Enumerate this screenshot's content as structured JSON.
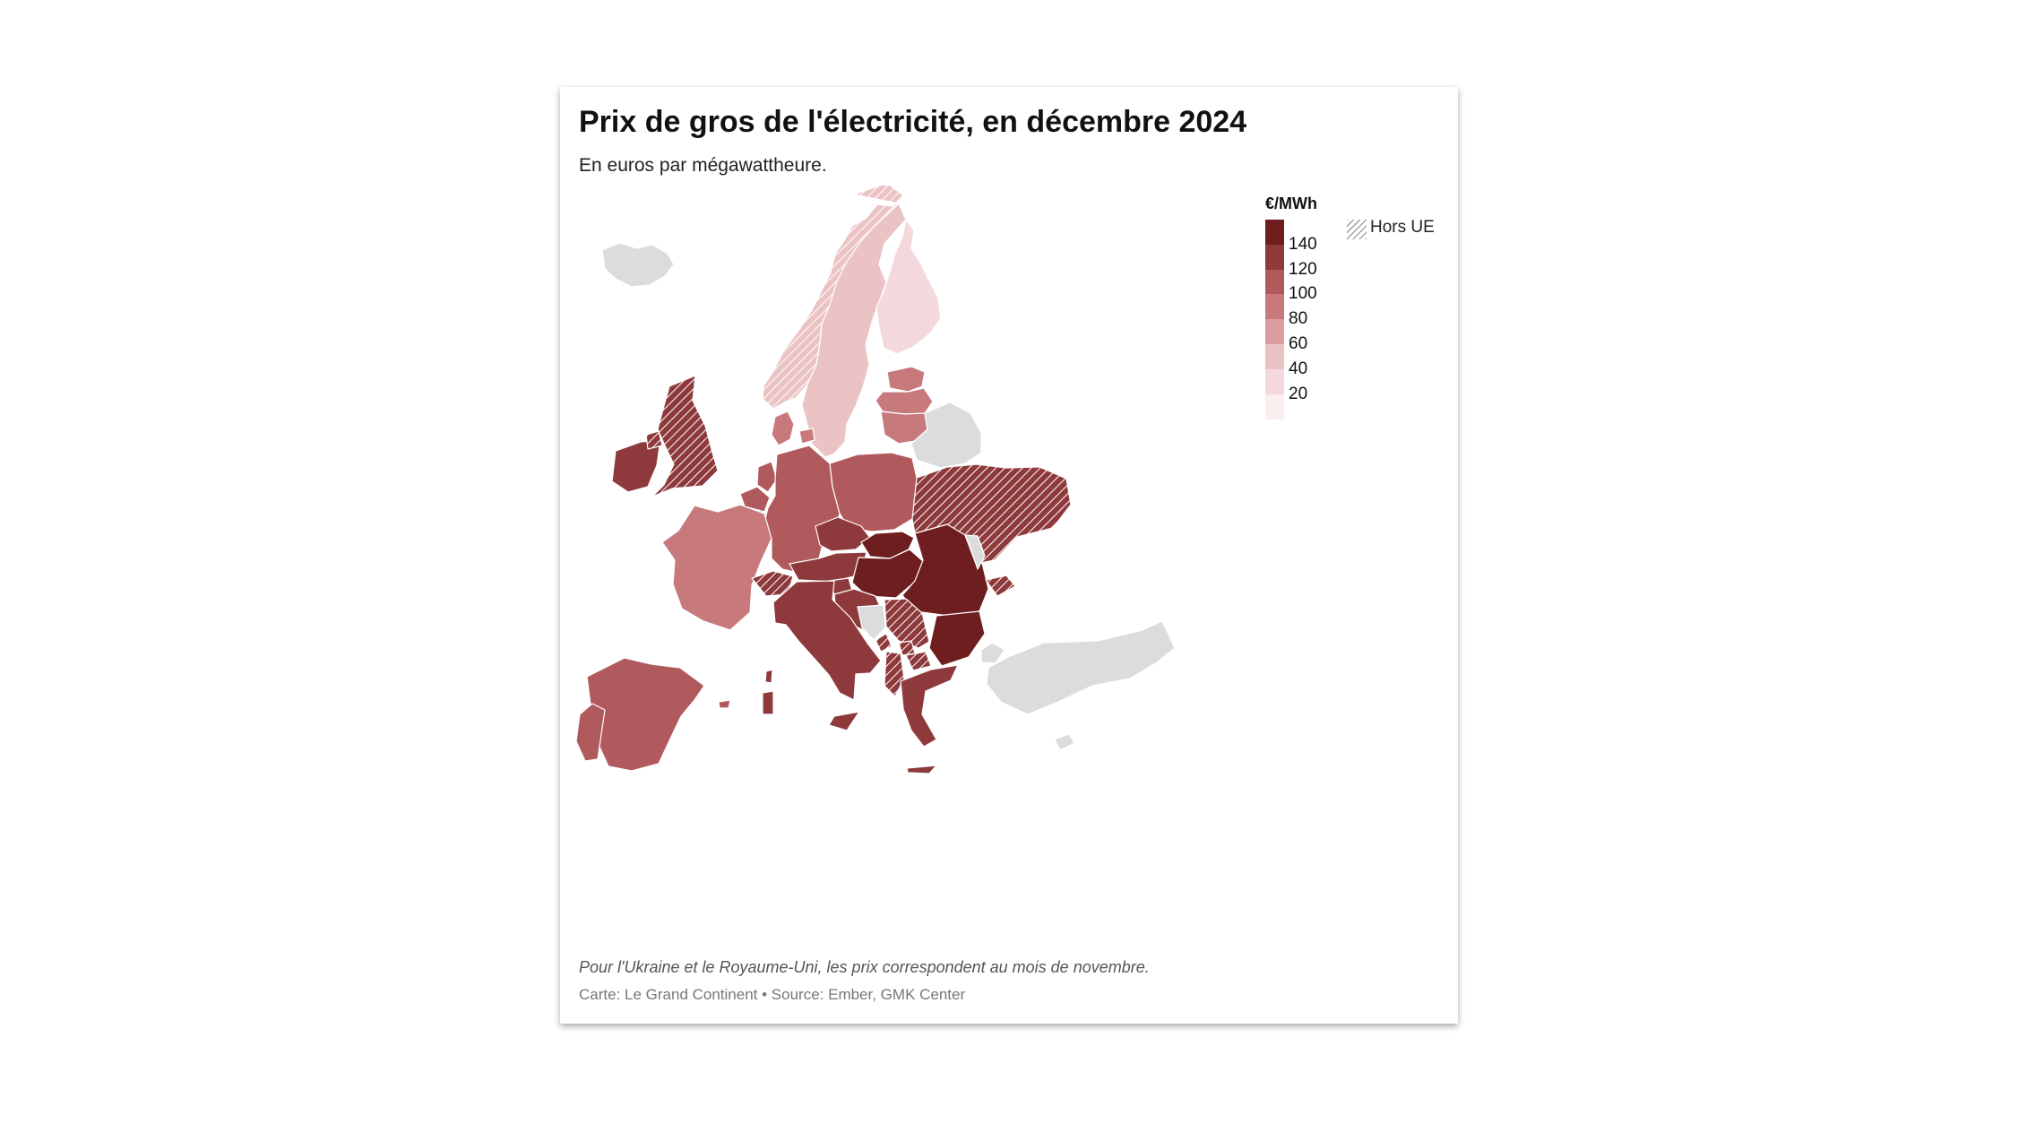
{
  "title": "Prix de gros de l'électricité, en décembre 2024",
  "subtitle": "En euros par mégawattheure.",
  "legend": {
    "unit": "€/MWh",
    "hatch_label": "Hors UE",
    "ticks": [
      "140",
      "120",
      "100",
      "80",
      "60",
      "40",
      "20"
    ],
    "colors": [
      "#6e1e1f",
      "#8e3a3c",
      "#b05a5e",
      "#c7797c",
      "#db9da0",
      "#ebc3c5",
      "#f3d9db",
      "#fbeeee"
    ]
  },
  "colors": {
    "no_data": "#dcdcdc",
    "border": "#ffffff",
    "hatch_line": "#ffffff"
  },
  "chart_data": {
    "type": "choropleth",
    "unit": "€/MWh",
    "scale_bins": [
      0,
      20,
      40,
      60,
      80,
      100,
      120,
      140,
      160
    ],
    "regions": [
      {
        "name": "Iceland",
        "value": null,
        "eu": false
      },
      {
        "name": "Norway",
        "value": 45,
        "eu": false
      },
      {
        "name": "Sweden",
        "value": 50,
        "eu": true
      },
      {
        "name": "Finland",
        "value": 30,
        "eu": true
      },
      {
        "name": "Estonia",
        "value": 90,
        "eu": true
      },
      {
        "name": "Latvia",
        "value": 90,
        "eu": true
      },
      {
        "name": "Lithuania",
        "value": 90,
        "eu": true
      },
      {
        "name": "Belarus",
        "value": null,
        "eu": false
      },
      {
        "name": "Denmark",
        "value": 90,
        "eu": true
      },
      {
        "name": "Ireland",
        "value": 120,
        "eu": true
      },
      {
        "name": "United Kingdom",
        "value": 120,
        "eu": false
      },
      {
        "name": "Netherlands",
        "value": 110,
        "eu": true
      },
      {
        "name": "Belgium",
        "value": 110,
        "eu": true
      },
      {
        "name": "Luxembourg",
        "value": 110,
        "eu": true
      },
      {
        "name": "Germany",
        "value": 110,
        "eu": true
      },
      {
        "name": "Poland",
        "value": 110,
        "eu": true
      },
      {
        "name": "France",
        "value": 90,
        "eu": true
      },
      {
        "name": "Switzerland",
        "value": 120,
        "eu": false
      },
      {
        "name": "Czechia",
        "value": 125,
        "eu": true
      },
      {
        "name": "Austria",
        "value": 125,
        "eu": true
      },
      {
        "name": "Slovakia",
        "value": 145,
        "eu": true
      },
      {
        "name": "Hungary",
        "value": 145,
        "eu": true
      },
      {
        "name": "Romania",
        "value": 145,
        "eu": true
      },
      {
        "name": "Bulgaria",
        "value": 145,
        "eu": true
      },
      {
        "name": "Slovenia",
        "value": 125,
        "eu": true
      },
      {
        "name": "Croatia",
        "value": 125,
        "eu": true
      },
      {
        "name": "Bosnia and Herzegovina",
        "value": null,
        "eu": false
      },
      {
        "name": "Serbia",
        "value": 130,
        "eu": false
      },
      {
        "name": "Montenegro",
        "value": 130,
        "eu": false
      },
      {
        "name": "Kosovo",
        "value": 130,
        "eu": false
      },
      {
        "name": "North Macedonia",
        "value": 130,
        "eu": false
      },
      {
        "name": "Albania",
        "value": 130,
        "eu": false
      },
      {
        "name": "Greece",
        "value": 125,
        "eu": true
      },
      {
        "name": "Italy",
        "value": 125,
        "eu": true
      },
      {
        "name": "Spain",
        "value": 110,
        "eu": true
      },
      {
        "name": "Portugal",
        "value": 110,
        "eu": true
      },
      {
        "name": "Ukraine",
        "value": 125,
        "eu": false
      },
      {
        "name": "Moldova",
        "value": null,
        "eu": false
      },
      {
        "name": "Turkey",
        "value": null,
        "eu": false
      },
      {
        "name": "Cyprus",
        "value": null,
        "eu": true
      }
    ]
  },
  "footnote": "Pour l'Ukraine et le Royaume-Uni, les prix correspondent au mois de novembre.",
  "source": "Carte: Le Grand Continent • Source: Ember, GMK Center"
}
